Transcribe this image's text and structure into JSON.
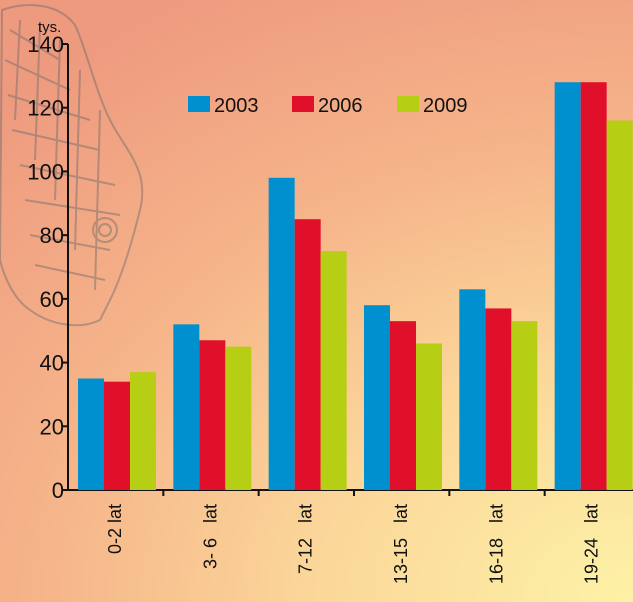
{
  "chart_data": {
    "type": "bar",
    "unit_label": "tys.",
    "categories": [
      "0-2 lat",
      "3- 6   lat",
      "7-12   lat",
      "13-15   lat",
      "16-18   lat",
      "19-24   lat"
    ],
    "series": [
      {
        "name": "2003",
        "color": "#0090d0",
        "values": [
          35,
          52,
          98,
          58,
          63,
          128
        ]
      },
      {
        "name": "2006",
        "color": "#e0102a",
        "values": [
          34,
          47,
          85,
          53,
          57,
          128
        ]
      },
      {
        "name": "2009",
        "color": "#b6cf14",
        "values": [
          37,
          45,
          75,
          46,
          53,
          116
        ]
      }
    ],
    "y_ticks": [
      0,
      20,
      40,
      60,
      80,
      100,
      120,
      140
    ],
    "ylim": [
      0,
      140
    ],
    "legend_position": "top-center",
    "grid": false
  }
}
